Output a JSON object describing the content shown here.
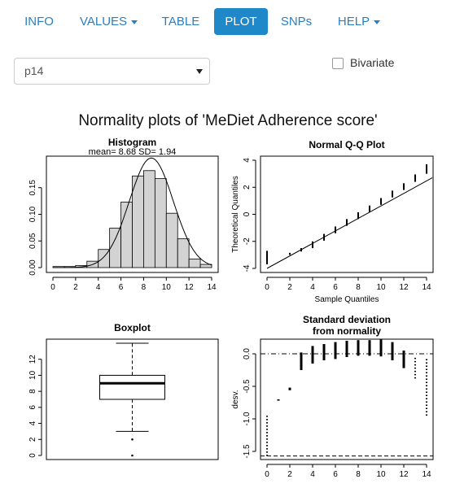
{
  "nav": {
    "items": [
      {
        "label": "INFO",
        "dropdown": false,
        "active": false
      },
      {
        "label": "VALUES",
        "dropdown": true,
        "active": false
      },
      {
        "label": "TABLE",
        "dropdown": false,
        "active": false
      },
      {
        "label": "PLOT",
        "dropdown": false,
        "active": true
      },
      {
        "label": "SNPs",
        "dropdown": false,
        "active": false
      },
      {
        "label": "HELP",
        "dropdown": true,
        "active": false
      }
    ]
  },
  "controls": {
    "variable_select": "p14",
    "bivariate_label": "Bivariate",
    "bivariate_checked": false
  },
  "colors": {
    "accent": "#1e88c9",
    "link": "#2a7fc1",
    "bar_fill": "#d3d3d3"
  },
  "figure": {
    "title": "Normality plots of 'MeDiet Adherence score'"
  },
  "chart_data": [
    {
      "type": "bar",
      "title": "Histogram",
      "subtitle": "mean= 8.68  SD= 1.94",
      "bin_edges": [
        0,
        1,
        2,
        3,
        4,
        5,
        6,
        7,
        8,
        9,
        10,
        11,
        12,
        13,
        14
      ],
      "values": [
        0.002,
        0.002,
        0.004,
        0.012,
        0.034,
        0.074,
        0.123,
        0.172,
        0.182,
        0.167,
        0.102,
        0.054,
        0.016,
        0.006
      ],
      "normal_curve": {
        "mean": 8.68,
        "sd": 1.94
      },
      "xlim": [
        0,
        14
      ],
      "ylim": [
        0,
        0.2
      ],
      "x_ticks": [
        "0",
        "2",
        "4",
        "6",
        "8",
        "10",
        "12",
        "14"
      ],
      "y_ticks": [
        "0.00",
        "0.05",
        "0.10",
        "0.15"
      ]
    },
    {
      "type": "scatter",
      "title": "Normal Q-Q Plot",
      "xlabel": "Sample Quantiles",
      "ylabel": "Theoretical Quantiles",
      "xlim": [
        0,
        14
      ],
      "ylim": [
        -4,
        4
      ],
      "x_ticks": [
        "0",
        "2",
        "4",
        "6",
        "8",
        "10",
        "12",
        "14"
      ],
      "y_ticks": [
        "-4",
        "-2",
        "0",
        "2",
        "4"
      ],
      "segments": [
        {
          "x": 0,
          "y0": -3.7,
          "y1": -2.7
        },
        {
          "x": 2,
          "y0": -3.0,
          "y1": -2.85
        },
        {
          "x": 3,
          "y0": -2.75,
          "y1": -2.5
        },
        {
          "x": 4,
          "y0": -2.5,
          "y1": -2.0
        },
        {
          "x": 5,
          "y0": -1.95,
          "y1": -1.45
        },
        {
          "x": 6,
          "y0": -1.4,
          "y1": -0.9
        },
        {
          "x": 7,
          "y0": -0.85,
          "y1": -0.35
        },
        {
          "x": 8,
          "y0": -0.35,
          "y1": 0.15
        },
        {
          "x": 9,
          "y0": 0.15,
          "y1": 0.65
        },
        {
          "x": 10,
          "y0": 0.7,
          "y1": 1.2
        },
        {
          "x": 11,
          "y0": 1.25,
          "y1": 1.75
        },
        {
          "x": 12,
          "y0": 1.8,
          "y1": 2.3
        },
        {
          "x": 13,
          "y0": 2.4,
          "y1": 2.95
        },
        {
          "x": 14,
          "y0": 3.0,
          "y1": 3.7
        }
      ],
      "reference_line": {
        "x0": 0,
        "y0": -4.0,
        "x1": 14.5,
        "y1": 2.7
      }
    },
    {
      "type": "box",
      "title": "Boxplot",
      "ylim": [
        0,
        14
      ],
      "y_ticks": [
        "0",
        "2",
        "4",
        "6",
        "8",
        "10",
        "12"
      ],
      "stats": {
        "min": 3,
        "q1": 7,
        "median": 9,
        "q3": 10,
        "max": 14
      },
      "outliers": [
        0,
        2
      ]
    },
    {
      "type": "scatter",
      "title": "Standard deviation",
      "subtitle": "from normality",
      "ylabel": "desv.",
      "xlim": [
        0,
        14
      ],
      "ylim": [
        -1.6,
        0.2
      ],
      "x_ticks": [
        "0",
        "2",
        "4",
        "6",
        "8",
        "10",
        "12",
        "14"
      ],
      "y_ticks": [
        "0.0",
        "-0.5",
        "-1.0",
        "-1.5"
      ],
      "segments": [
        {
          "x": 0,
          "y0": -1.57,
          "y1": -0.95
        },
        {
          "x": 1,
          "y0": -0.7,
          "y1": -0.72
        },
        {
          "x": 2,
          "y0": -0.56,
          "y1": -0.52
        },
        {
          "x": 3,
          "y0": -0.25,
          "y1": 0.02
        },
        {
          "x": 4,
          "y0": -0.15,
          "y1": 0.12
        },
        {
          "x": 5,
          "y0": -0.1,
          "y1": 0.15
        },
        {
          "x": 6,
          "y0": -0.08,
          "y1": 0.18
        },
        {
          "x": 7,
          "y0": -0.05,
          "y1": 0.2
        },
        {
          "x": 8,
          "y0": -0.03,
          "y1": 0.21
        },
        {
          "x": 9,
          "y0": -0.03,
          "y1": 0.21
        },
        {
          "x": 10,
          "y0": -0.04,
          "y1": 0.22
        },
        {
          "x": 11,
          "y0": -0.1,
          "y1": 0.18
        },
        {
          "x": 12,
          "y0": -0.22,
          "y1": 0.05
        },
        {
          "x": 13,
          "y0": -0.38,
          "y1": -0.05
        },
        {
          "x": 14,
          "y0": -0.95,
          "y1": -0.05
        }
      ],
      "hlines": [
        0.0,
        -1.57
      ]
    }
  ]
}
